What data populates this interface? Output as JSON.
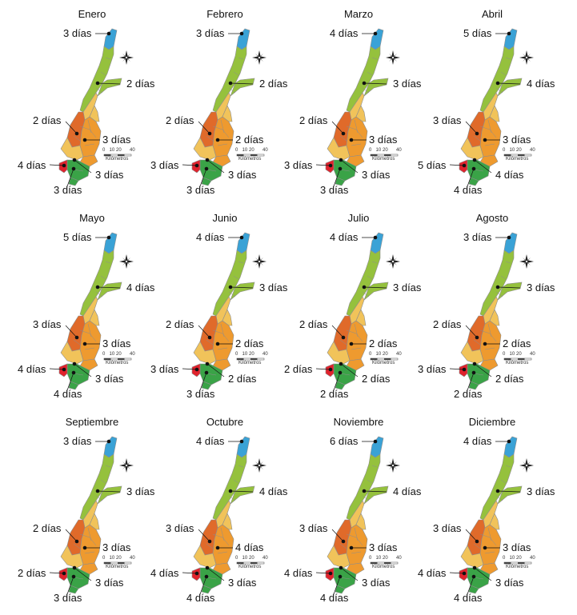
{
  "scale": {
    "ticks": [
      "0",
      "10",
      "20",
      "40"
    ],
    "unit": "Kilómetros"
  },
  "colors": {
    "blue": "#3aa2d6",
    "lightgreen": "#95c13d",
    "yellow": "#f1c35a",
    "orange": "#ee9a2f",
    "darkorange": "#e06a2a",
    "red": "#e0222c",
    "green": "#3aa347",
    "border": "#8d8d8d"
  },
  "months": [
    {
      "name": "Enero",
      "labels": [
        "3 días",
        "2 días",
        "2 días",
        "3 días",
        "4 días",
        "3 días",
        "3 días"
      ]
    },
    {
      "name": "Febrero",
      "labels": [
        "3 días",
        "2 días",
        "2 días",
        "2 días",
        "3 días",
        "3 días",
        "3 días"
      ]
    },
    {
      "name": "Marzo",
      "labels": [
        "4 días",
        "3 días",
        "2 días",
        "3 días",
        "3 días",
        "3 días",
        "3 días"
      ]
    },
    {
      "name": "Abril",
      "labels": [
        "5 días",
        "4 días",
        "3 días",
        "3 días",
        "5 días",
        "4 días",
        "4 días"
      ]
    },
    {
      "name": "Mayo",
      "labels": [
        "5 días",
        "4 días",
        "3 días",
        "3 días",
        "4 días",
        "3 días",
        "4 días"
      ]
    },
    {
      "name": "Junio",
      "labels": [
        "4 días",
        "3 días",
        "2 días",
        "2 días",
        "3 días",
        "2 días",
        "3 días"
      ]
    },
    {
      "name": "Julio",
      "labels": [
        "4 días",
        "3 días",
        "2 días",
        "2 días",
        "2 días",
        "2 días",
        "2 días"
      ]
    },
    {
      "name": "Agosto",
      "labels": [
        "3 días",
        "3 días",
        "2 días",
        "2 días",
        "3 días",
        "2 días",
        "2 días"
      ]
    },
    {
      "name": "Septiembre",
      "labels": [
        "3 días",
        "3 días",
        "2 días",
        "3 días",
        "2 días",
        "3 días",
        "3 días"
      ]
    },
    {
      "name": "Octubre",
      "labels": [
        "4 días",
        "4 días",
        "3 días",
        "4 días",
        "4 días",
        "3 días",
        "4 días"
      ]
    },
    {
      "name": "Noviembre",
      "labels": [
        "6 días",
        "4 días",
        "3 días",
        "3 días",
        "4 días",
        "3 días",
        "4 días"
      ]
    },
    {
      "name": "Diciembre",
      "labels": [
        "4 días",
        "3 días",
        "3 días",
        "3 días",
        "4 días",
        "3 días",
        "4 días"
      ]
    }
  ]
}
